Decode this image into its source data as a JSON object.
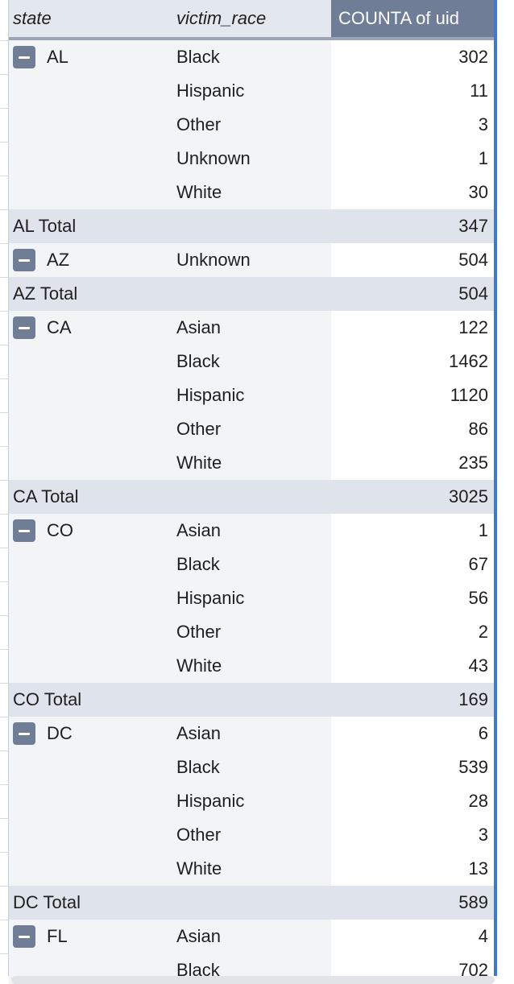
{
  "header": {
    "state": "state",
    "victim_race": "victim_race",
    "count": "COUNTA of uid"
  },
  "groups": [
    {
      "state": "AL",
      "rows": [
        {
          "race": "Black",
          "count": "302"
        },
        {
          "race": "Hispanic",
          "count": "11"
        },
        {
          "race": "Other",
          "count": "3"
        },
        {
          "race": "Unknown",
          "count": "1"
        },
        {
          "race": "White",
          "count": "30"
        }
      ],
      "total_label": "AL Total",
      "total": "347"
    },
    {
      "state": "AZ",
      "rows": [
        {
          "race": "Unknown",
          "count": "504"
        }
      ],
      "total_label": "AZ Total",
      "total": "504"
    },
    {
      "state": "CA",
      "rows": [
        {
          "race": "Asian",
          "count": "122"
        },
        {
          "race": "Black",
          "count": "1462"
        },
        {
          "race": "Hispanic",
          "count": "1120"
        },
        {
          "race": "Other",
          "count": "86"
        },
        {
          "race": "White",
          "count": "235"
        }
      ],
      "total_label": "CA Total",
      "total": "3025"
    },
    {
      "state": "CO",
      "rows": [
        {
          "race": "Asian",
          "count": "1"
        },
        {
          "race": "Black",
          "count": "67"
        },
        {
          "race": "Hispanic",
          "count": "56"
        },
        {
          "race": "Other",
          "count": "2"
        },
        {
          "race": "White",
          "count": "43"
        }
      ],
      "total_label": "CO Total",
      "total": "169"
    },
    {
      "state": "DC",
      "rows": [
        {
          "race": "Asian",
          "count": "6"
        },
        {
          "race": "Black",
          "count": "539"
        },
        {
          "race": "Hispanic",
          "count": "28"
        },
        {
          "race": "Other",
          "count": "3"
        },
        {
          "race": "White",
          "count": "13"
        }
      ],
      "total_label": "DC Total",
      "total": "589"
    },
    {
      "state": "FL",
      "rows": [
        {
          "race": "Asian",
          "count": "4"
        },
        {
          "race": "Black",
          "count": "702"
        }
      ]
    }
  ],
  "colors": {
    "header_accent": "#6f7d97",
    "selection_border": "#3c78d8",
    "total_row_bg": "#dfe4ec"
  }
}
